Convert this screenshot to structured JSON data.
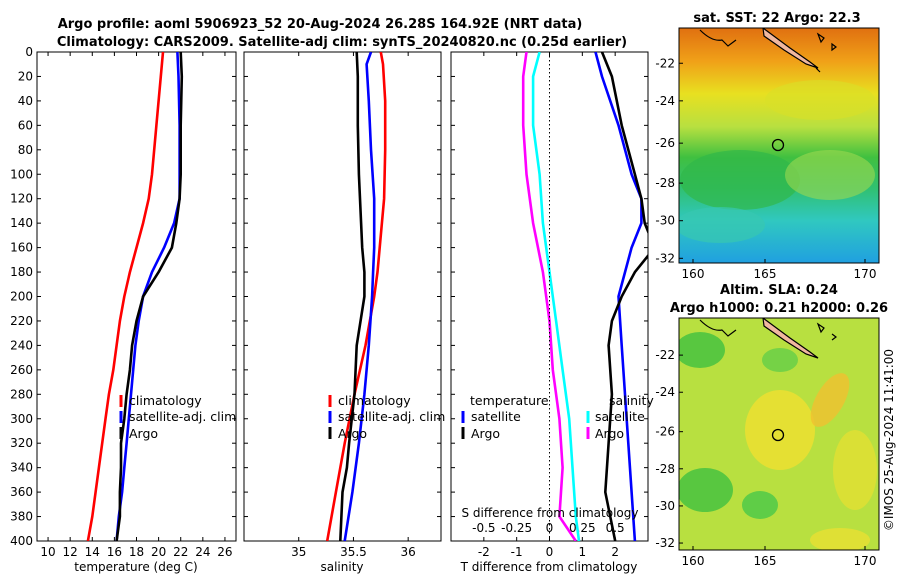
{
  "header": {
    "title_line1": "Argo profile: aoml 5906923_52 20-Aug-2024 26.28S 164.92E (NRT data)",
    "title_line2": "Climatology: CARS2009. Satellite-adj clim: synTS_20240820.nc (0.25d earlier)"
  },
  "colors": {
    "climatology": "#ff0000",
    "satellite": "#0000ff",
    "argo": "#000000",
    "sat_salinity": "#00ffff",
    "sal_diff": "#ff00ff"
  },
  "chart_data": [
    {
      "id": "temperature",
      "type": "line",
      "xlabel": "temperature (deg C)",
      "ylabel": "",
      "xlim": [
        9,
        27
      ],
      "ylim": [
        400,
        0
      ],
      "xticks": [
        10,
        12,
        14,
        16,
        18,
        20,
        22,
        24,
        26
      ],
      "yticks": [
        0,
        20,
        40,
        60,
        80,
        100,
        120,
        140,
        160,
        180,
        200,
        220,
        240,
        260,
        280,
        300,
        320,
        340,
        360,
        380,
        400
      ],
      "legend": [
        "climatology",
        "satellite-adj. clim",
        "Argo"
      ],
      "series": [
        {
          "name": "climatology",
          "color": "#ff0000",
          "depth": [
            0,
            20,
            60,
            100,
            120,
            140,
            160,
            180,
            200,
            220,
            240,
            260,
            280,
            300,
            320,
            340,
            360,
            380,
            400
          ],
          "values": [
            20.4,
            20.2,
            19.8,
            19.4,
            19.1,
            18.6,
            18.0,
            17.4,
            16.9,
            16.5,
            16.2,
            15.9,
            15.5,
            15.2,
            14.9,
            14.6,
            14.3,
            14.0,
            13.6
          ]
        },
        {
          "name": "satellite-adj. clim",
          "color": "#0000ff",
          "depth": [
            0,
            20,
            60,
            100,
            120,
            140,
            160,
            180,
            200,
            220,
            240,
            260,
            280,
            300,
            320,
            340,
            360,
            380,
            400
          ],
          "values": [
            21.7,
            21.8,
            21.9,
            21.9,
            21.9,
            21.4,
            20.5,
            19.4,
            18.6,
            18.2,
            17.9,
            17.7,
            17.5,
            17.3,
            17.1,
            16.9,
            16.7,
            16.4,
            16.2
          ]
        },
        {
          "name": "Argo",
          "color": "#000000",
          "depth": [
            0,
            20,
            60,
            100,
            120,
            140,
            160,
            180,
            200,
            220,
            240,
            260,
            280,
            300,
            320,
            340,
            360,
            380,
            400
          ],
          "values": [
            22.0,
            22.1,
            22.0,
            22.0,
            21.9,
            21.6,
            21.2,
            20.0,
            18.6,
            18.0,
            17.6,
            17.4,
            17.1,
            16.9,
            16.6,
            16.6,
            16.5,
            16.5,
            16.2
          ]
        }
      ]
    },
    {
      "id": "salinity",
      "type": "line",
      "xlabel": "salinity",
      "xlim": [
        34.5,
        36.3
      ],
      "ylim": [
        400,
        0
      ],
      "xticks": [
        35,
        35.5,
        36
      ],
      "legend": [
        "climatology",
        "satellite-adj. clim",
        "Argo"
      ],
      "series": [
        {
          "name": "climatology",
          "color": "#ff0000",
          "depth": [
            0,
            10,
            40,
            80,
            120,
            160,
            180,
            200,
            240,
            280,
            320,
            360,
            400
          ],
          "values": [
            35.75,
            35.77,
            35.79,
            35.79,
            35.78,
            35.74,
            35.72,
            35.69,
            35.61,
            35.51,
            35.42,
            35.34,
            35.26
          ]
        },
        {
          "name": "satellite-adj. clim",
          "color": "#0000ff",
          "depth": [
            0,
            10,
            40,
            80,
            120,
            160,
            180,
            200,
            240,
            280,
            320,
            360,
            400
          ],
          "values": [
            35.66,
            35.62,
            35.64,
            35.66,
            35.69,
            35.69,
            35.68,
            35.67,
            35.64,
            35.6,
            35.55,
            35.49,
            35.42
          ]
        },
        {
          "name": "Argo",
          "color": "#000000",
          "depth": [
            0,
            20,
            60,
            100,
            140,
            160,
            180,
            200,
            240,
            280,
            320,
            340,
            360,
            400
          ],
          "values": [
            35.53,
            35.54,
            35.54,
            35.55,
            35.57,
            35.58,
            35.6,
            35.6,
            35.53,
            35.51,
            35.46,
            35.44,
            35.4,
            35.38
          ]
        }
      ]
    },
    {
      "id": "differences",
      "type": "line",
      "xlabel": "T difference from climatology",
      "xlabel_top": "S difference from climatology",
      "xlim": [
        -3,
        3
      ],
      "ylim": [
        400,
        0
      ],
      "xticks": [
        -2,
        -1,
        0,
        1,
        2
      ],
      "sal_tick_labels": [
        "-0.5",
        "-0.25",
        "0",
        "0.25",
        "0.5"
      ],
      "sal_tick_positions": [
        -2,
        -1,
        0,
        1,
        2
      ],
      "legend_temperature_title": "temperature",
      "legend_salinity_title": "salinity",
      "legend_temperature": [
        "satellite",
        "Argo"
      ],
      "legend_salinity": [
        "satellite",
        "Argo"
      ],
      "series": [
        {
          "name": "T satellite",
          "color": "#0000ff",
          "depth": [
            0,
            20,
            60,
            100,
            120,
            140,
            160,
            200,
            240,
            280,
            320,
            360,
            400
          ],
          "values": [
            1.4,
            1.6,
            2.1,
            2.5,
            2.8,
            2.8,
            2.5,
            2.1,
            2.2,
            2.3,
            2.4,
            2.5,
            2.6
          ]
        },
        {
          "name": "T Argo",
          "color": "#000000",
          "depth": [
            0,
            20,
            60,
            100,
            120,
            140,
            160,
            180,
            200,
            220,
            240,
            280,
            320,
            360,
            400
          ],
          "values": [
            1.6,
            1.9,
            2.2,
            2.6,
            2.8,
            2.9,
            3.2,
            2.6,
            2.2,
            1.9,
            1.8,
            1.9,
            1.8,
            1.7,
            2.0
          ]
        },
        {
          "name": "S satellite",
          "color": "#00ffff",
          "depth": [
            0,
            20,
            60,
            100,
            140,
            180,
            220,
            260,
            300,
            340,
            380,
            400
          ],
          "values": [
            -0.3,
            -0.5,
            -0.5,
            -0.3,
            -0.2,
            0.0,
            0.2,
            0.4,
            0.6,
            0.7,
            0.8,
            0.9
          ]
        },
        {
          "name": "S Argo",
          "color": "#ff00ff",
          "depth": [
            0,
            20,
            60,
            100,
            140,
            180,
            220,
            260,
            300,
            340,
            380,
            400
          ],
          "values": [
            -0.7,
            -0.8,
            -0.8,
            -0.7,
            -0.5,
            -0.2,
            0.0,
            0.1,
            0.3,
            0.4,
            0.3,
            0.8
          ]
        }
      ]
    }
  ],
  "maps": {
    "sst": {
      "title": "sat. SST: 22 Argo: 22.3",
      "xticks": [
        "160",
        "165",
        "170"
      ],
      "yticks": [
        "-22",
        "-24",
        "-26",
        "-28",
        "-30",
        "-32"
      ],
      "marker_lon": 164.92,
      "marker_lat": -26.28
    },
    "sla": {
      "title_line1": "Altim. SLA: 0.24",
      "title_line2": "Argo h1000: 0.21 h2000: 0.26",
      "xticks": [
        "160",
        "165",
        "170"
      ],
      "yticks": [
        "-22",
        "-24",
        "-26",
        "-28",
        "-30",
        "-32"
      ],
      "marker_lon": 164.92,
      "marker_lat": -26.28
    }
  },
  "footer": {
    "credit": "©IMOS 25-Aug-2024 11:41:00"
  }
}
